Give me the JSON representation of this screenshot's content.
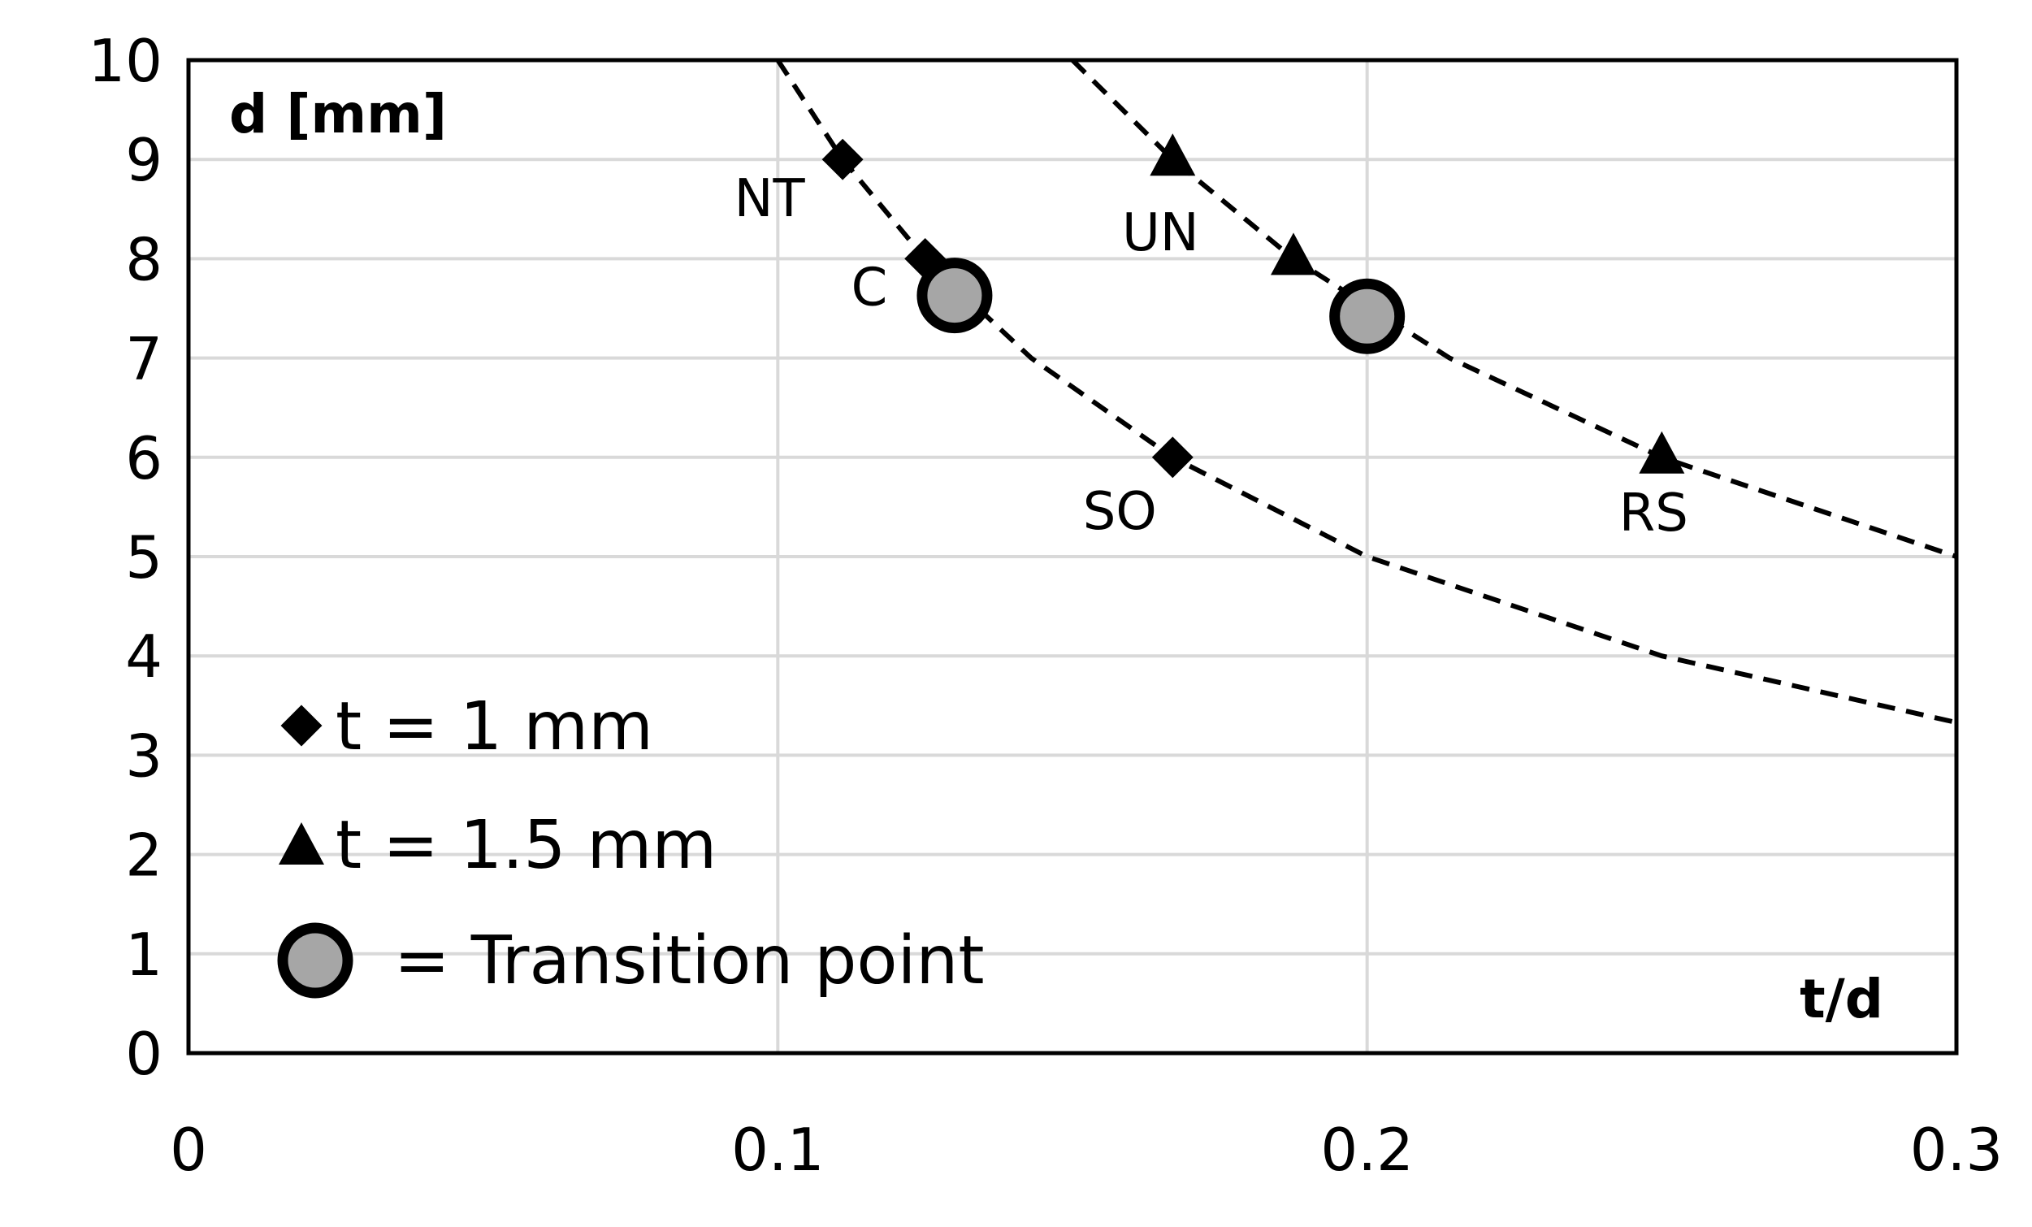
{
  "chart_data": {
    "type": "scatter",
    "xlabel": "t/d",
    "ylabel": "d [mm]",
    "xlim": [
      0,
      0.3
    ],
    "ylim": [
      0,
      10
    ],
    "x_ticks": [
      "0",
      "0.1",
      "0.2",
      "0.3"
    ],
    "y_ticks": [
      "0",
      "1",
      "2",
      "3",
      "4",
      "5",
      "6",
      "7",
      "8",
      "9",
      "10"
    ],
    "grid": true,
    "series": [
      {
        "name": "t = 1 mm",
        "marker": "diamond",
        "points": [
          {
            "x": 0.111,
            "y": 9,
            "label": "NT"
          },
          {
            "x": 0.125,
            "y": 8,
            "label": ""
          },
          {
            "x": 0.167,
            "y": 6,
            "label": "SO"
          }
        ],
        "curve": [
          [
            0.1,
            10
          ],
          [
            0.111,
            9
          ],
          [
            0.125,
            8
          ],
          [
            0.143,
            7
          ],
          [
            0.167,
            6
          ],
          [
            0.2,
            5
          ],
          [
            0.25,
            4
          ],
          [
            0.3,
            3.33
          ]
        ]
      },
      {
        "name": "t = 1.5 mm",
        "marker": "triangle",
        "points": [
          {
            "x": 0.167,
            "y": 9,
            "label": "UN"
          },
          {
            "x": 0.1875,
            "y": 8,
            "label": ""
          },
          {
            "x": 0.25,
            "y": 6,
            "label": "RS"
          }
        ],
        "curve": [
          [
            0.15,
            10
          ],
          [
            0.167,
            9
          ],
          [
            0.1875,
            8
          ],
          [
            0.214,
            7
          ],
          [
            0.25,
            6
          ],
          [
            0.3,
            5
          ]
        ]
      },
      {
        "name": "= Transition point",
        "marker": "circle",
        "points": [
          {
            "x": 0.13,
            "y": 7.63,
            "label": "C"
          },
          {
            "x": 0.2,
            "y": 7.42,
            "label": ""
          }
        ]
      }
    ],
    "legend": {
      "placement": "bottom-left",
      "entries": [
        "t = 1 mm",
        "t = 1.5 mm",
        "= Transition point"
      ]
    },
    "colors": {
      "marker": "#000000",
      "transition_fill": "#a6a6a6",
      "grid": "#d9d9d9"
    }
  }
}
